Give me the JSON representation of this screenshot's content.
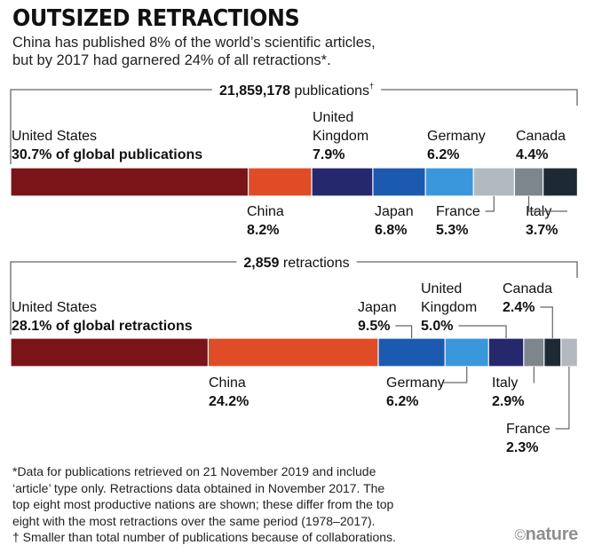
{
  "title": "OUTSIZED RETRACTIONS",
  "subtitle_line1": "China has published 8% of the world’s scientific articles,",
  "subtitle_line2": "but by 2017 had garnered 24% of all retractions*.",
  "colors": {
    "United States": "#7a1418",
    "China": "#e04c26",
    "United Kingdom": "#26286e",
    "Japan": "#1c5aaf",
    "Germany": "#3a97dc",
    "France": "#b3b9c1",
    "Italy": "#7d868d",
    "Canada": "#1e2a33",
    "bracket": "#666666"
  },
  "chart_data": [
    {
      "type": "stacked-bar",
      "total_bold": "21,859,178",
      "total_label": "publications",
      "total_mark": "†",
      "unit": "% of global publications",
      "series": [
        {
          "name": "United States",
          "value": 30.7,
          "label": "30.7% of global publications"
        },
        {
          "name": "China",
          "value": 8.2,
          "label": "8.2%"
        },
        {
          "name": "United Kingdom",
          "value": 7.9,
          "label": "7.9%"
        },
        {
          "name": "Japan",
          "value": 6.8,
          "label": "6.8%"
        },
        {
          "name": "Germany",
          "value": 6.2,
          "label": "6.2%"
        },
        {
          "name": "France",
          "value": 5.3,
          "label": "5.3%"
        },
        {
          "name": "Italy",
          "value": 3.7,
          "label": "3.7%"
        },
        {
          "name": "Canada",
          "value": 4.4,
          "label": "4.4%"
        }
      ]
    },
    {
      "type": "stacked-bar",
      "total_bold": "2,859",
      "total_label": "retractions",
      "total_mark": "",
      "unit": "% of global retractions",
      "series": [
        {
          "name": "United States",
          "value": 28.1,
          "label": "28.1% of global retractions"
        },
        {
          "name": "China",
          "value": 24.2,
          "label": "24.2%"
        },
        {
          "name": "Japan",
          "value": 9.5,
          "label": "9.5%"
        },
        {
          "name": "Germany",
          "value": 6.2,
          "label": "6.2%"
        },
        {
          "name": "United Kingdom",
          "value": 5.0,
          "label": "5.0%"
        },
        {
          "name": "Italy",
          "value": 2.9,
          "label": "2.9%"
        },
        {
          "name": "Canada",
          "value": 2.4,
          "label": "2.4%"
        },
        {
          "name": "France",
          "value": 2.3,
          "label": "2.3%"
        }
      ]
    }
  ],
  "footnotes": [
    "*Data for publications retrieved on 21 November 2019 and include",
    "‘article’ type only. Retractions data obtained in November 2017. The",
    "top eight most productive nations are shown; these differ from the top",
    "eight with the most retractions over the same period (1978–2017).",
    "† Smaller than total number of publications because of collaborations."
  ],
  "logo": {
    "symbol": "©",
    "text": "nature"
  }
}
